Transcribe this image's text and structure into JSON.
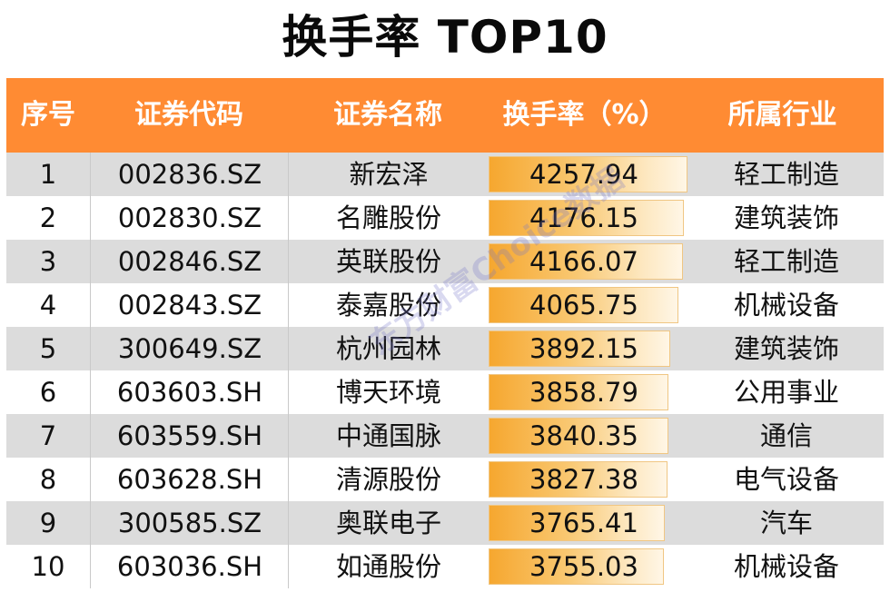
{
  "title": "换手率 TOP10",
  "watermark": "东方财富Choice数据",
  "colors": {
    "header_bg": "#ff8b33",
    "header_text": "#ffffff",
    "row_alt": "#dcdcdc",
    "bar_start": "#f6a72f",
    "bar_end": "#fff6e6"
  },
  "chart_data": {
    "type": "table",
    "title": "换手率 TOP10",
    "columns": [
      "序号",
      "证券代码",
      "证券名称",
      "换手率（%）",
      "所属行业"
    ],
    "bar_column": "换手率（%）",
    "bar_range": [
      0,
      4257.94
    ],
    "rows": [
      {
        "rank": "1",
        "code": "002836.SZ",
        "name": "新宏泽",
        "turnover": "4257.94",
        "value": 4257.94,
        "industry": "轻工制造"
      },
      {
        "rank": "2",
        "code": "002830.SZ",
        "name": "名雕股份",
        "turnover": "4176.15",
        "value": 4176.15,
        "industry": "建筑装饰"
      },
      {
        "rank": "3",
        "code": "002846.SZ",
        "name": "英联股份",
        "turnover": "4166.07",
        "value": 4166.07,
        "industry": "轻工制造"
      },
      {
        "rank": "4",
        "code": "002843.SZ",
        "name": "泰嘉股份",
        "turnover": "4065.75",
        "value": 4065.75,
        "industry": "机械设备"
      },
      {
        "rank": "5",
        "code": "300649.SZ",
        "name": "杭州园林",
        "turnover": "3892.15",
        "value": 3892.15,
        "industry": "建筑装饰"
      },
      {
        "rank": "6",
        "code": "603603.SH",
        "name": "博天环境",
        "turnover": "3858.79",
        "value": 3858.79,
        "industry": "公用事业"
      },
      {
        "rank": "7",
        "code": "603559.SH",
        "name": "中通国脉",
        "turnover": "3840.35",
        "value": 3840.35,
        "industry": "通信"
      },
      {
        "rank": "8",
        "code": "603628.SH",
        "name": "清源股份",
        "turnover": "3827.38",
        "value": 3827.38,
        "industry": "电气设备"
      },
      {
        "rank": "9",
        "code": "300585.SZ",
        "name": "奥联电子",
        "turnover": "3765.41",
        "value": 3765.41,
        "industry": "汽车"
      },
      {
        "rank": "10",
        "code": "603036.SH",
        "name": "如通股份",
        "turnover": "3755.03",
        "value": 3755.03,
        "industry": "机械设备"
      }
    ]
  }
}
